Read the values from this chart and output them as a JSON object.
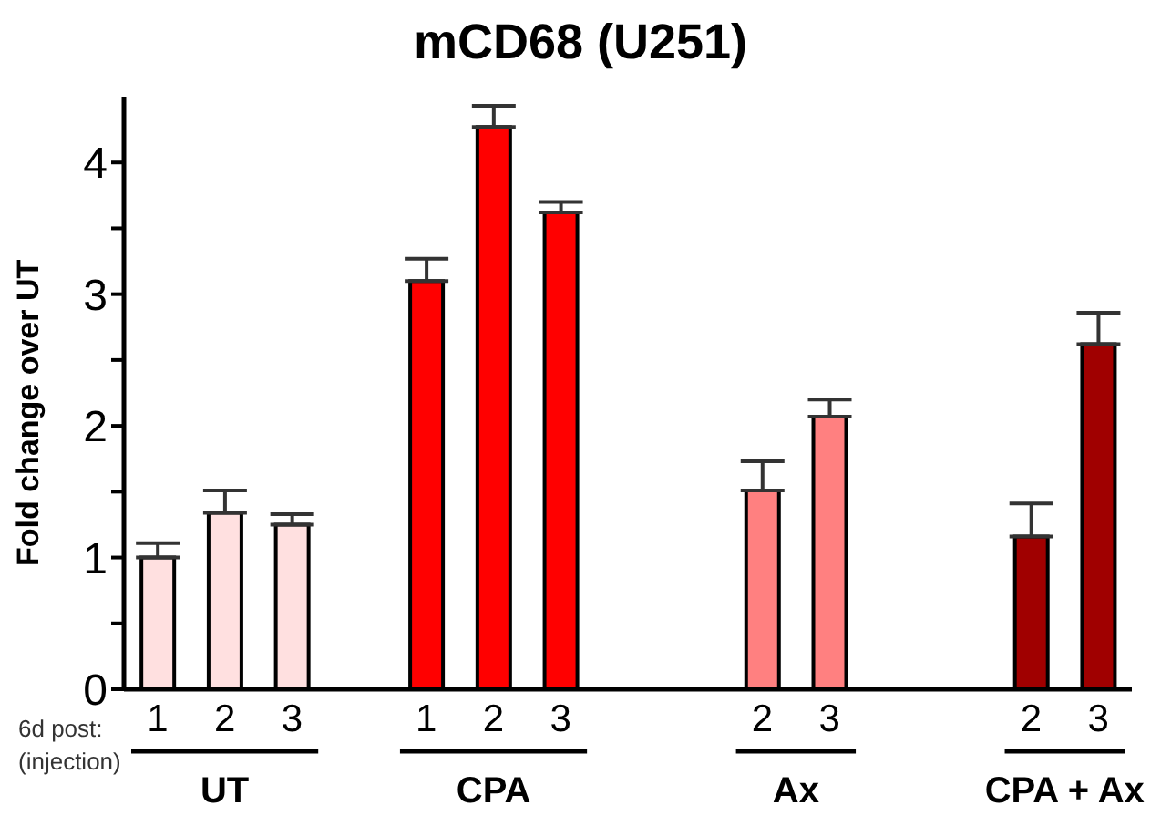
{
  "chart_data": {
    "type": "bar",
    "title": "mCD68 (U251)",
    "ylabel": "Fold change over UT",
    "categories": [
      "1",
      "2",
      "3",
      null,
      "1",
      "2",
      "3",
      null,
      null,
      "2",
      "3",
      null,
      null,
      "2",
      "3"
    ],
    "values": [
      1.0,
      1.34,
      1.25,
      null,
      3.1,
      4.27,
      3.62,
      null,
      null,
      1.51,
      2.07,
      null,
      null,
      1.16,
      2.62
    ],
    "errors": [
      0.11,
      0.17,
      0.08,
      null,
      0.17,
      0.16,
      0.08,
      null,
      null,
      0.22,
      0.13,
      null,
      null,
      0.25,
      0.24
    ],
    "colors": [
      "#ffe0e0",
      "#ffe0e0",
      "#ffe0e0",
      null,
      "#ff0000",
      "#ff0000",
      "#ff0000",
      null,
      null,
      "#ff8080",
      "#ff8080",
      null,
      null,
      "#a00000",
      "#a00000"
    ],
    "ylim": [
      0,
      4.5
    ],
    "yticks": [
      0,
      {
        "value": 0.5,
        "label": null
      },
      1,
      {
        "value": 1.5,
        "label": null
      },
      2,
      {
        "value": 2.5,
        "label": null
      },
      3,
      {
        "value": 3.5,
        "label": null
      },
      4
    ],
    "annotations": [
      "6d post:\n(injection)",
      "UT",
      "CPA",
      "Ax",
      "CPA + Ax"
    ],
    "grid": false,
    "legend": false
  }
}
